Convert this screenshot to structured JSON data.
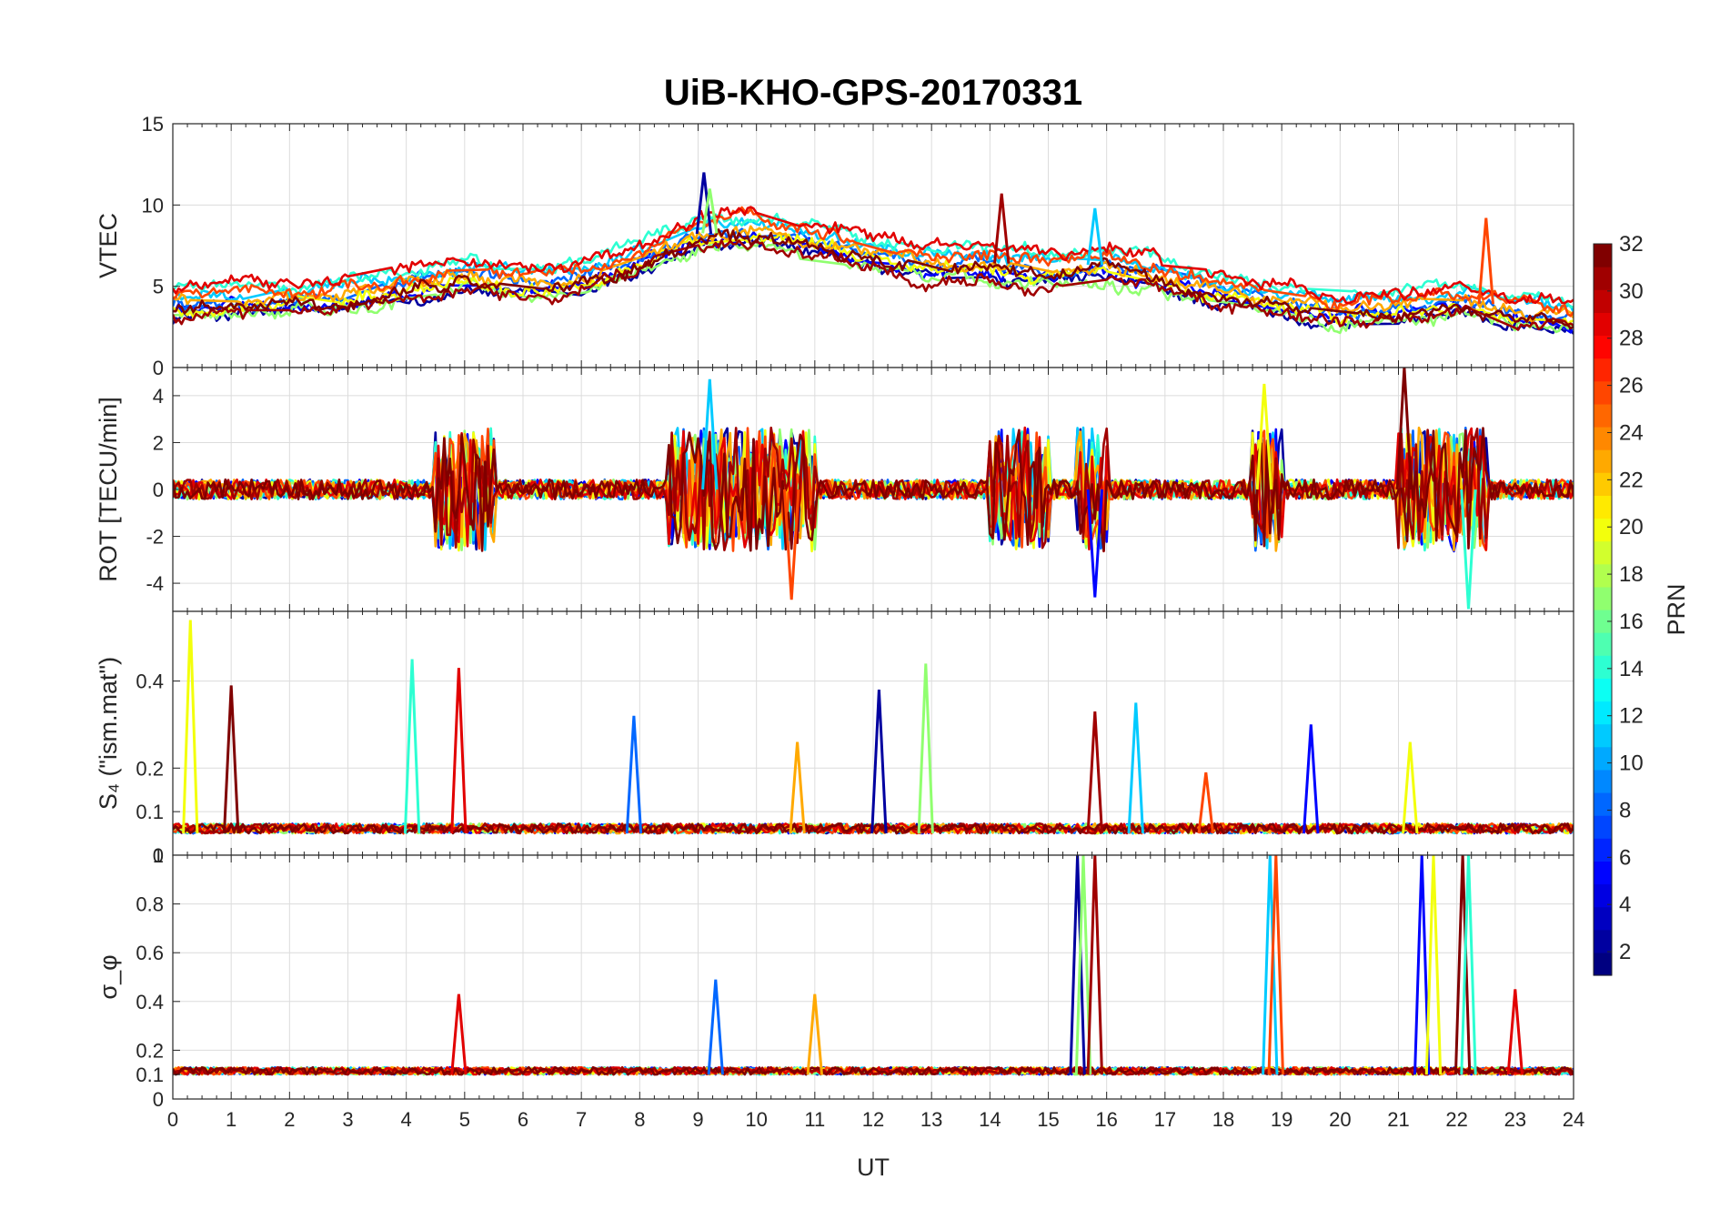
{
  "chart_data": {
    "type": "line",
    "title": "UiB-KHO-GPS-20170331",
    "xlabel": "UT",
    "xlim": [
      0,
      24
    ],
    "x_ticks": [
      "0",
      "1",
      "2",
      "3",
      "4",
      "5",
      "6",
      "7",
      "8",
      "9",
      "10",
      "11",
      "12",
      "13",
      "14",
      "15",
      "16",
      "17",
      "18",
      "19",
      "20",
      "21",
      "22",
      "23",
      "24"
    ],
    "grid": true,
    "panels": [
      {
        "id": "vtec",
        "ylabel": "VTEC",
        "ylim": [
          0,
          15
        ],
        "y_ticks": [
          {
            "v": 0,
            "label": "0"
          },
          {
            "v": 5,
            "label": "5"
          },
          {
            "v": 10,
            "label": "10"
          },
          {
            "v": 15,
            "label": "15"
          }
        ],
        "envelope": [
          [
            0,
            4
          ],
          [
            1,
            4.2
          ],
          [
            2,
            4.3
          ],
          [
            3,
            4.5
          ],
          [
            4,
            5
          ],
          [
            5,
            5.8
          ],
          [
            6,
            5.2
          ],
          [
            7,
            5.5
          ],
          [
            8,
            6.8
          ],
          [
            9,
            8.2
          ],
          [
            10,
            8.5
          ],
          [
            11,
            7.8
          ],
          [
            12,
            7
          ],
          [
            13,
            6.4
          ],
          [
            14,
            6.5
          ],
          [
            15,
            6
          ],
          [
            16,
            6.4
          ],
          [
            17,
            5.6
          ],
          [
            18,
            4.8
          ],
          [
            19,
            4.2
          ],
          [
            20,
            3.6
          ],
          [
            21,
            3.8
          ],
          [
            22,
            4.2
          ],
          [
            23,
            3.6
          ],
          [
            24,
            3.2
          ]
        ],
        "noise": 0.9,
        "spikes": [
          {
            "x": 9.1,
            "y": 12
          },
          {
            "x": 9.2,
            "y": 11
          },
          {
            "x": 14.2,
            "y": 10.7
          },
          {
            "x": 15.8,
            "y": 9.8
          },
          {
            "x": 22.5,
            "y": 9.2
          }
        ],
        "baseline": null
      },
      {
        "id": "rot",
        "ylabel": "ROT [TECU/min]",
        "ylim": [
          -5.2,
          5.2
        ],
        "y_ticks": [
          {
            "v": -4,
            "label": "-4"
          },
          {
            "v": -2,
            "label": "-2"
          },
          {
            "v": 0,
            "label": "0"
          },
          {
            "v": 2,
            "label": "2"
          },
          {
            "v": 4,
            "label": "4"
          }
        ],
        "envelope": [
          [
            0,
            0
          ],
          [
            24,
            0
          ]
        ],
        "noise": 1.2,
        "bursts": [
          [
            4.5,
            5.5
          ],
          [
            8.5,
            11
          ],
          [
            14,
            15
          ],
          [
            15.5,
            16
          ],
          [
            18.5,
            19
          ],
          [
            21,
            22.5
          ]
        ],
        "spikes": [
          {
            "x": 9.2,
            "y": 4.7
          },
          {
            "x": 10.6,
            "y": -4.7
          },
          {
            "x": 15.8,
            "y": -4.6
          },
          {
            "x": 18.7,
            "y": 4.5
          },
          {
            "x": 21.1,
            "y": 5.2
          },
          {
            "x": 22.2,
            "y": -5.1
          }
        ],
        "baseline": 0
      },
      {
        "id": "s4",
        "ylabel": "S₄ (\"ism.mat\")",
        "ylim": [
          0,
          0.56
        ],
        "y_ticks": [
          {
            "v": 0,
            "label": "0"
          },
          {
            "v": 0.1,
            "label": "0.1"
          },
          {
            "v": 0.2,
            "label": "0.2"
          },
          {
            "v": 0.4,
            "label": "0.4"
          }
        ],
        "envelope": [
          [
            0,
            0.05
          ],
          [
            24,
            0.05
          ]
        ],
        "noise": 0.03,
        "spikes": [
          {
            "x": 0.3,
            "y": 0.54
          },
          {
            "x": 1.0,
            "y": 0.39
          },
          {
            "x": 4.1,
            "y": 0.45
          },
          {
            "x": 4.9,
            "y": 0.43
          },
          {
            "x": 7.9,
            "y": 0.32
          },
          {
            "x": 10.7,
            "y": 0.26
          },
          {
            "x": 12.1,
            "y": 0.38
          },
          {
            "x": 12.9,
            "y": 0.44
          },
          {
            "x": 15.8,
            "y": 0.33
          },
          {
            "x": 16.5,
            "y": 0.35
          },
          {
            "x": 17.7,
            "y": 0.19
          },
          {
            "x": 19.5,
            "y": 0.3
          },
          {
            "x": 21.2,
            "y": 0.26
          }
        ],
        "baseline": null
      },
      {
        "id": "sigma",
        "ylabel": "σ_φ",
        "ylim": [
          0,
          1
        ],
        "y_ticks": [
          {
            "v": 0,
            "label": "0"
          },
          {
            "v": 0.1,
            "label": "0.1"
          },
          {
            "v": 0.2,
            "label": "0.2"
          },
          {
            "v": 0.4,
            "label": "0.4"
          },
          {
            "v": 0.6,
            "label": "0.6"
          },
          {
            "v": 0.8,
            "label": "0.8"
          },
          {
            "v": 1,
            "label": "1"
          }
        ],
        "envelope": [
          [
            0,
            0.1
          ],
          [
            24,
            0.1
          ]
        ],
        "noise": 0.04,
        "spikes": [
          {
            "x": 4.9,
            "y": 0.43
          },
          {
            "x": 9.3,
            "y": 0.49
          },
          {
            "x": 11,
            "y": 0.43
          },
          {
            "x": 15.5,
            "y": 1
          },
          {
            "x": 15.6,
            "y": 1
          },
          {
            "x": 15.8,
            "y": 1
          },
          {
            "x": 18.8,
            "y": 1
          },
          {
            "x": 18.9,
            "y": 1
          },
          {
            "x": 21.4,
            "y": 1
          },
          {
            "x": 21.6,
            "y": 1
          },
          {
            "x": 22.1,
            "y": 1
          },
          {
            "x": 22.2,
            "y": 1
          },
          {
            "x": 23,
            "y": 0.45
          }
        ],
        "baseline": null
      }
    ],
    "colorbar": {
      "label": "PRN",
      "range": [
        1,
        32
      ],
      "ticks": [
        "2",
        "4",
        "6",
        "8",
        "10",
        "12",
        "14",
        "16",
        "18",
        "20",
        "22",
        "24",
        "26",
        "28",
        "30",
        "32"
      ],
      "colormap": "jet"
    },
    "series_prns": [
      2,
      5,
      8,
      11,
      14,
      17,
      20,
      23,
      26,
      29,
      31,
      32
    ]
  }
}
